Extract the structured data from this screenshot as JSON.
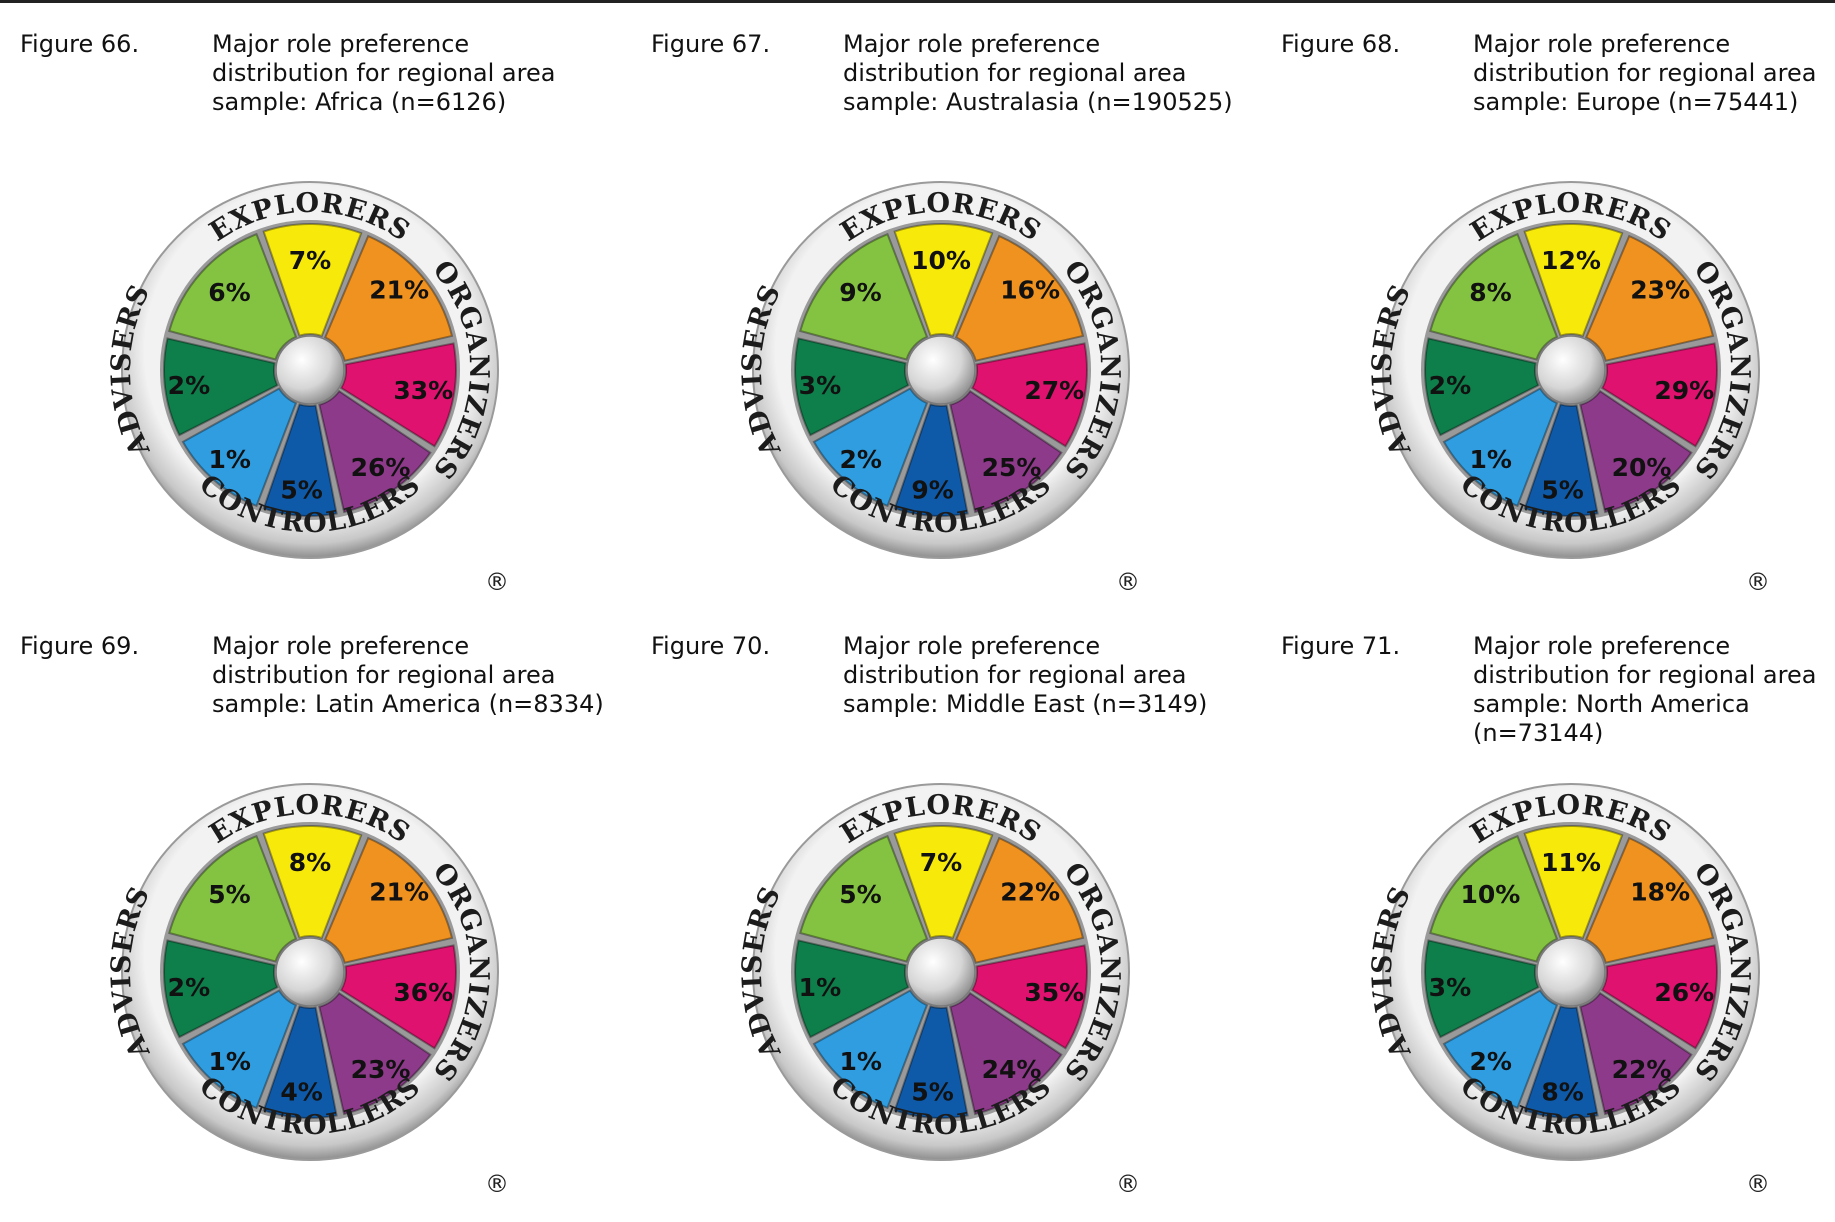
{
  "figures": [
    {
      "label": "Figure 66.",
      "caption": "Major role preference distribution for regional area sample: Africa (n=6126)",
      "chart_data": {
        "type": "pie",
        "categories": [
          "Explorers",
          "Organizers upper",
          "Organizers middle",
          "Organizers lower",
          "Controllers",
          "Advisers lower",
          "Advisers middle",
          "Advisers upper"
        ],
        "values": [
          "7%",
          "21%",
          "33%",
          "26%",
          "5%",
          "1%",
          "2%",
          "6%"
        ]
      }
    },
    {
      "label": "Figure 67.",
      "caption": "Major role preference distribution for regional area sample: Australasia (n=190525)",
      "chart_data": {
        "type": "pie",
        "categories": [
          "Explorers",
          "Organizers upper",
          "Organizers middle",
          "Organizers lower",
          "Controllers",
          "Advisers lower",
          "Advisers middle",
          "Advisers upper"
        ],
        "values": [
          "10%",
          "16%",
          "27%",
          "25%",
          "9%",
          "2%",
          "3%",
          "9%"
        ]
      }
    },
    {
      "label": "Figure 68.",
      "caption": "Major role preference distribution for regional area sample: Europe (n=75441)",
      "chart_data": {
        "type": "pie",
        "categories": [
          "Explorers",
          "Organizers upper",
          "Organizers middle",
          "Organizers lower",
          "Controllers",
          "Advisers lower",
          "Advisers middle",
          "Advisers upper"
        ],
        "values": [
          "12%",
          "23%",
          "29%",
          "20%",
          "5%",
          "1%",
          "2%",
          "8%"
        ]
      }
    },
    {
      "label": "Figure 69.",
      "caption": "Major role preference distribution for regional area sample: Latin America (n=8334)",
      "chart_data": {
        "type": "pie",
        "categories": [
          "Explorers",
          "Organizers upper",
          "Organizers middle",
          "Organizers lower",
          "Controllers",
          "Advisers lower",
          "Advisers middle",
          "Advisers upper"
        ],
        "values": [
          "8%",
          "21%",
          "36%",
          "23%",
          "4%",
          "1%",
          "2%",
          "5%"
        ]
      }
    },
    {
      "label": "Figure 70.",
      "caption": "Major role preference distribution for regional area sample: Middle East (n=3149)",
      "chart_data": {
        "type": "pie",
        "categories": [
          "Explorers",
          "Organizers upper",
          "Organizers middle",
          "Organizers lower",
          "Controllers",
          "Advisers lower",
          "Advisers middle",
          "Advisers upper"
        ],
        "values": [
          "7%",
          "22%",
          "35%",
          "24%",
          "5%",
          "1%",
          "1%",
          "5%"
        ]
      }
    },
    {
      "label": "Figure 71.",
      "caption": "Major role preference distribution for regional area sample: North America (n=73144)",
      "chart_data": {
        "type": "pie",
        "categories": [
          "Explorers",
          "Organizers upper",
          "Organizers middle",
          "Organizers lower",
          "Controllers",
          "Advisers lower",
          "Advisers middle",
          "Advisers upper"
        ],
        "values": [
          "11%",
          "18%",
          "26%",
          "22%",
          "8%",
          "2%",
          "3%",
          "10%"
        ]
      }
    }
  ],
  "wheel": {
    "ring_labels": {
      "top": "EXPLORERS",
      "right": "ORGANIZERS",
      "bottom": "CONTROLLERS",
      "left": "ADVISERS"
    },
    "registered_mark": "®",
    "segment_colors": [
      "#f7ea0a",
      "#f0921f",
      "#e0126f",
      "#8e3a8a",
      "#0f5aa8",
      "#2f9de0",
      "#0e7e4a",
      "#84c341"
    ]
  }
}
